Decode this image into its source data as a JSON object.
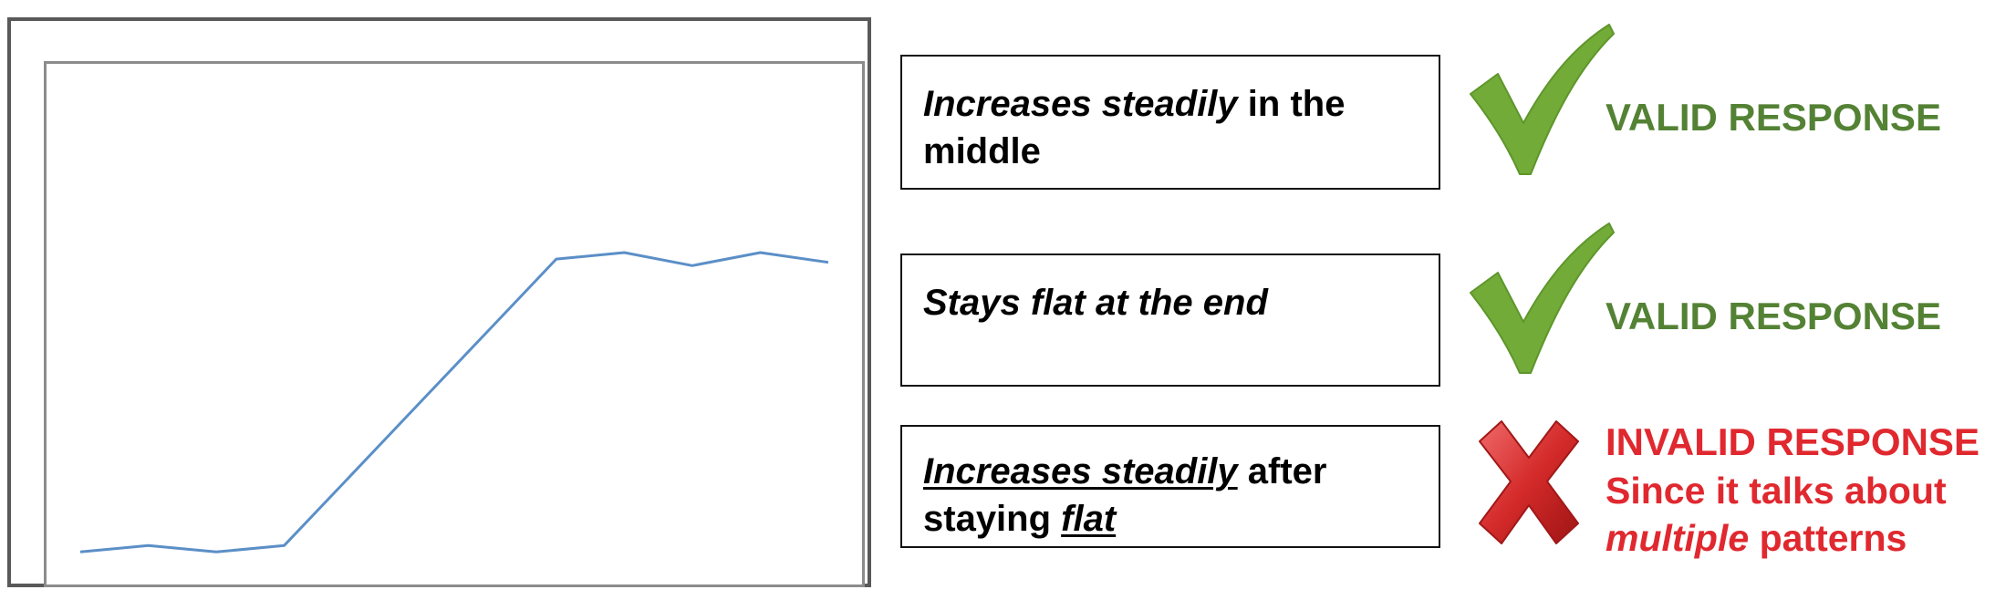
{
  "chart_data": {
    "type": "line",
    "x": [
      1,
      2,
      3,
      4,
      5,
      6,
      7,
      8,
      9,
      10,
      11,
      12
    ],
    "series": [
      {
        "values": [
          0.1,
          0.12,
          0.1,
          0.12,
          0.34,
          0.56,
          0.78,
          1.0,
          1.02,
          0.98,
          1.02,
          0.99
        ]
      }
    ],
    "ylim": [
      0,
      1.6
    ],
    "line_color": "#5b8fc7",
    "grid": false,
    "axes_visible": false
  },
  "responses": [
    {
      "parts": [
        {
          "text": "Increases steadily",
          "italic": true
        },
        {
          "text": " in the middle"
        }
      ],
      "verdict": "VALID RESPONSE",
      "icon": "checkmark-icon"
    },
    {
      "parts": [
        {
          "text": "Stays flat at the end",
          "italic": true
        }
      ],
      "verdict": "VALID RESPONSE",
      "icon": "checkmark-icon"
    },
    {
      "parts": [
        {
          "text": "Increases steadily",
          "italic": true,
          "underline": true
        },
        {
          "text": " after staying "
        },
        {
          "text": "flat",
          "italic": true,
          "underline": true
        }
      ],
      "verdict": "INVALID RESPONSE",
      "reason": [
        {
          "text": "Since it talks about"
        },
        {
          "text": "multiple",
          "italic": true
        },
        {
          "text": " patterns"
        }
      ],
      "icon": "cross-icon"
    }
  ],
  "colors": {
    "valid": "#548235",
    "invalid": "#e0282f",
    "check_fill": "#72ab38",
    "cross_fill": "#d42a2a"
  }
}
